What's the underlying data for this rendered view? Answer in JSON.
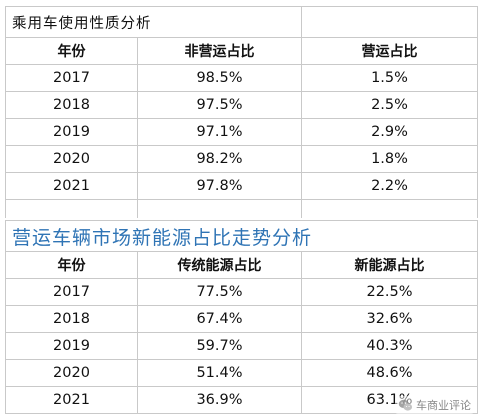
{
  "table1": {
    "title": "乘用车使用性质分析",
    "headers": [
      "年份",
      "非营运占比",
      "营运占比"
    ],
    "rows": [
      [
        "2017",
        "98.5%",
        "1.5%"
      ],
      [
        "2018",
        "97.5%",
        "2.5%"
      ],
      [
        "2019",
        "97.1%",
        "2.9%"
      ],
      [
        "2020",
        "98.2%",
        "1.8%"
      ],
      [
        "2021",
        "97.8%",
        "2.2%"
      ]
    ]
  },
  "table2": {
    "title": "营运车辆市场新能源占比走势分析",
    "title_color": "#2f74b5",
    "headers": [
      "年份",
      "传统能源占比",
      "新能源占比"
    ],
    "rows": [
      [
        "2017",
        "77.5%",
        "22.5%"
      ],
      [
        "2018",
        "67.4%",
        "32.6%"
      ],
      [
        "2019",
        "59.7%",
        "40.3%"
      ],
      [
        "2020",
        "51.4%",
        "48.6%"
      ],
      [
        "2021",
        "36.9%",
        "63.1%"
      ]
    ]
  },
  "watermark": {
    "icon": "wechat-icon",
    "text": "车商业评论"
  }
}
